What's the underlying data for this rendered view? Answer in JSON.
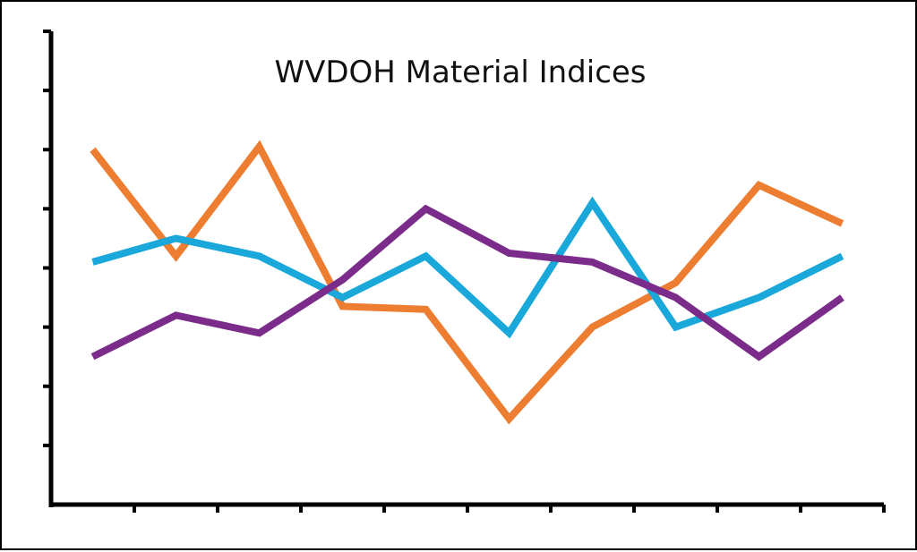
{
  "chart_data": {
    "type": "line",
    "title": "WVDOH Material Indices",
    "xlabel": "",
    "ylabel": "",
    "x": [
      1,
      2,
      3,
      4,
      5,
      6,
      7,
      8,
      9,
      10
    ],
    "xlim": [
      0.5,
      10.5
    ],
    "ylim": [
      0,
      8
    ],
    "grid": false,
    "legend": "none",
    "x_ticks": 10,
    "y_ticks": 8,
    "series": [
      {
        "color": "#ED7D31",
        "values": [
          6,
          4.2,
          6.05,
          3.35,
          3.3,
          1.45,
          3,
          3.75,
          5.4,
          4.75
        ]
      },
      {
        "color": "#1AA7D9",
        "values": [
          4.1,
          4.5,
          4.2,
          3.5,
          4.2,
          2.9,
          5.1,
          3,
          3.5,
          4.2
        ]
      },
      {
        "color": "#7B2C8A",
        "values": [
          2.5,
          3.2,
          2.9,
          3.8,
          5,
          4.25,
          4.1,
          3.5,
          2.5,
          3.5
        ]
      }
    ]
  }
}
